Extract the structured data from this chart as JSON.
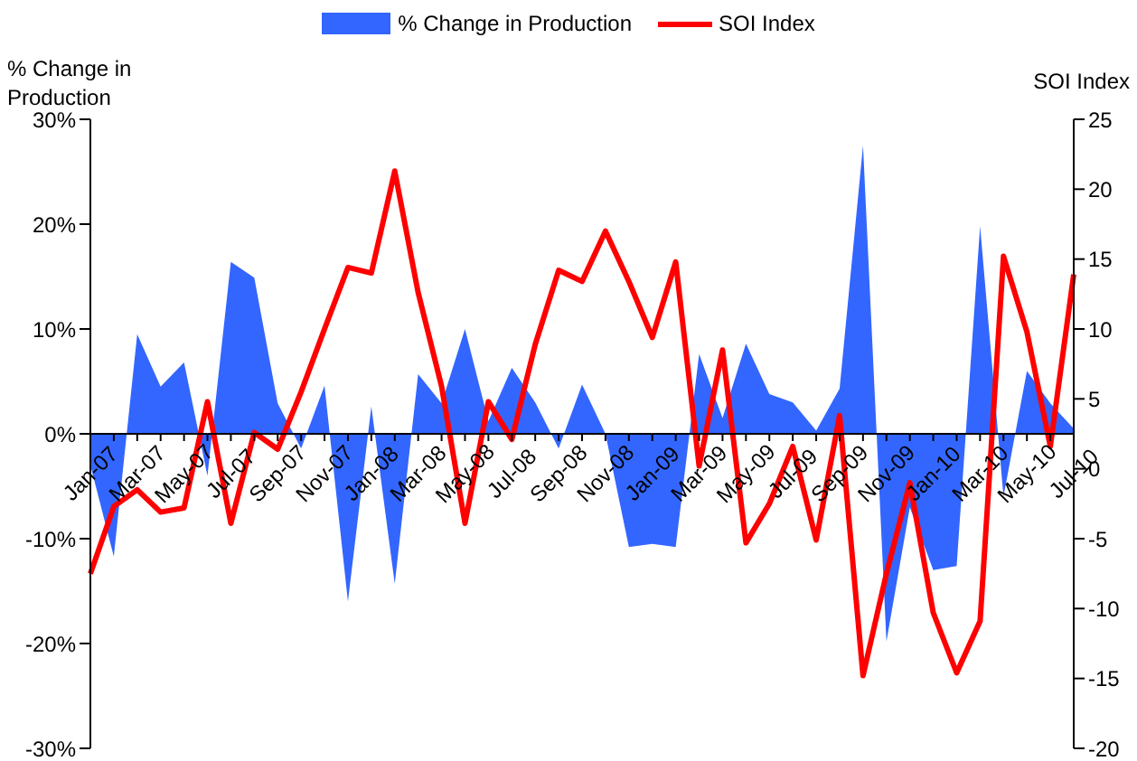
{
  "chart_data": {
    "type": "area",
    "ylabel": "% Change in Production",
    "y2label": "SOI Index",
    "legend": "top",
    "marker": "none",
    "categories": [
      "Jan-07",
      null,
      "Mar-07",
      null,
      "May-07",
      null,
      "Jul-07",
      null,
      "Sep-07",
      null,
      "Nov-07",
      null,
      "Jan-08",
      null,
      "Mar-08",
      null,
      "May-08",
      null,
      "Jul-08",
      null,
      "Sep-08",
      null,
      "Nov-08",
      null,
      "Jan-09",
      null,
      "Mar-09",
      null,
      "May-09",
      null,
      "Jul-09",
      null,
      "Sep-09",
      null,
      "Nov-09",
      null,
      "Jan-10",
      null,
      "Mar-10",
      null,
      "May-10",
      null,
      "Jul-10"
    ],
    "ylim": [
      -30,
      30
    ],
    "yticks": [
      {
        "value": -30,
        "label": "-30%"
      },
      {
        "value": -20,
        "label": "-20%"
      },
      {
        "value": -10,
        "label": "-10%"
      },
      {
        "value": 0,
        "label": "0%"
      },
      {
        "value": 10,
        "label": "10%"
      },
      {
        "value": 20,
        "label": "20%"
      },
      {
        "value": 30,
        "label": "30%"
      }
    ],
    "y2lim": [
      -20,
      25
    ],
    "y2ticks": [
      -20,
      -15,
      -10,
      -5,
      0,
      5,
      10,
      15,
      20,
      25
    ],
    "series": [
      {
        "name": "% Change in Production",
        "color": "#3366ff",
        "values": [
          -3,
          -11.7,
          9.5,
          4.5,
          6.8,
          -4,
          16.4,
          14.9,
          2.9,
          -1.4,
          4.6,
          -16,
          2.6,
          -14.3,
          5.7,
          2.9,
          10,
          1.2,
          6.3,
          3,
          -1.4,
          4.7,
          0,
          -10.8,
          -10.5,
          -10.8,
          7.6,
          1.5,
          8.6,
          3.8,
          3,
          0.3,
          4.3,
          27.5,
          -19.8,
          -7,
          -13,
          -12.6,
          19.8,
          -6,
          6,
          2.9,
          0.5
        ]
      },
      {
        "name": "SOI Index",
        "type": "line",
        "axis": "y2",
        "color": "#ff0000",
        "values": [
          -7.5,
          -2.7,
          -1.5,
          -3.1,
          -2.8,
          4.8,
          -3.9,
          2.6,
          1.4,
          5.5,
          10,
          14.4,
          14,
          21.3,
          12.6,
          5.9,
          -3.9,
          4.8,
          2.1,
          8.9,
          14.2,
          13.4,
          17,
          13.4,
          9.4,
          14.8,
          0.2,
          8.5,
          -5.3,
          -2.5,
          1.6,
          -5.1,
          3.8,
          -14.8,
          -7.5,
          -1,
          -10.3,
          -14.6,
          -10.9,
          15.2,
          9.8,
          1.6,
          13.9
        ]
      }
    ]
  }
}
